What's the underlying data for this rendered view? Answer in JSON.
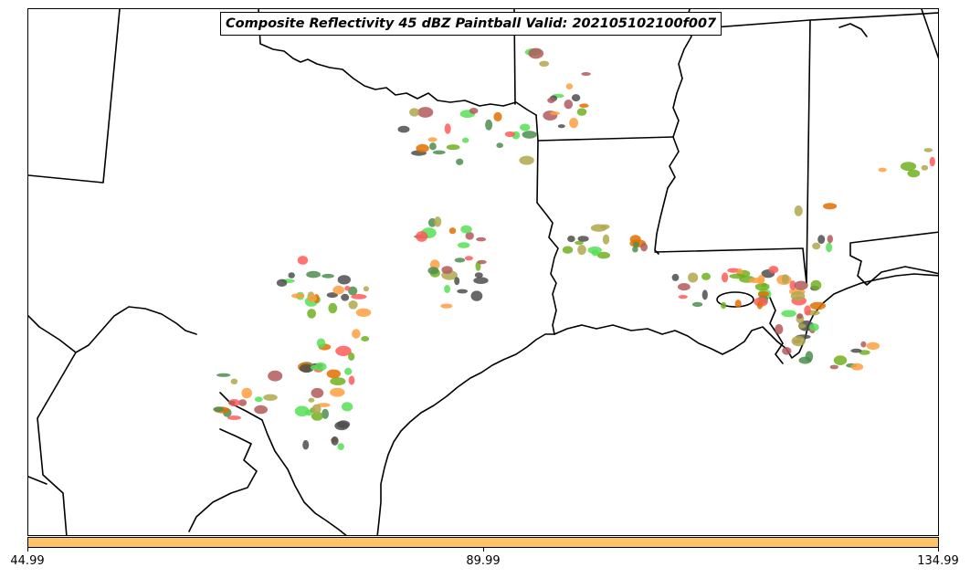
{
  "title": "Composite Reflectivity 45 dBZ Paintball Valid: 202105102100f007",
  "colorbar": {
    "color": "#ffc266",
    "ticks": [
      "44.99",
      "89.99",
      "134.99"
    ]
  },
  "palette": [
    "#4e4e4e",
    "#b15a5a",
    "#ff5a5a",
    "#55e055",
    "#4e8e4e",
    "#b0a84e",
    "#ff9f40",
    "#e07000",
    "#70b020"
  ],
  "map": {
    "region": "Southern United States (Texas, Oklahoma, Arkansas, Louisiana, Mississippi)",
    "boundaries": [
      "state-borders",
      "gulf-coastline",
      "mexico-border"
    ]
  }
}
